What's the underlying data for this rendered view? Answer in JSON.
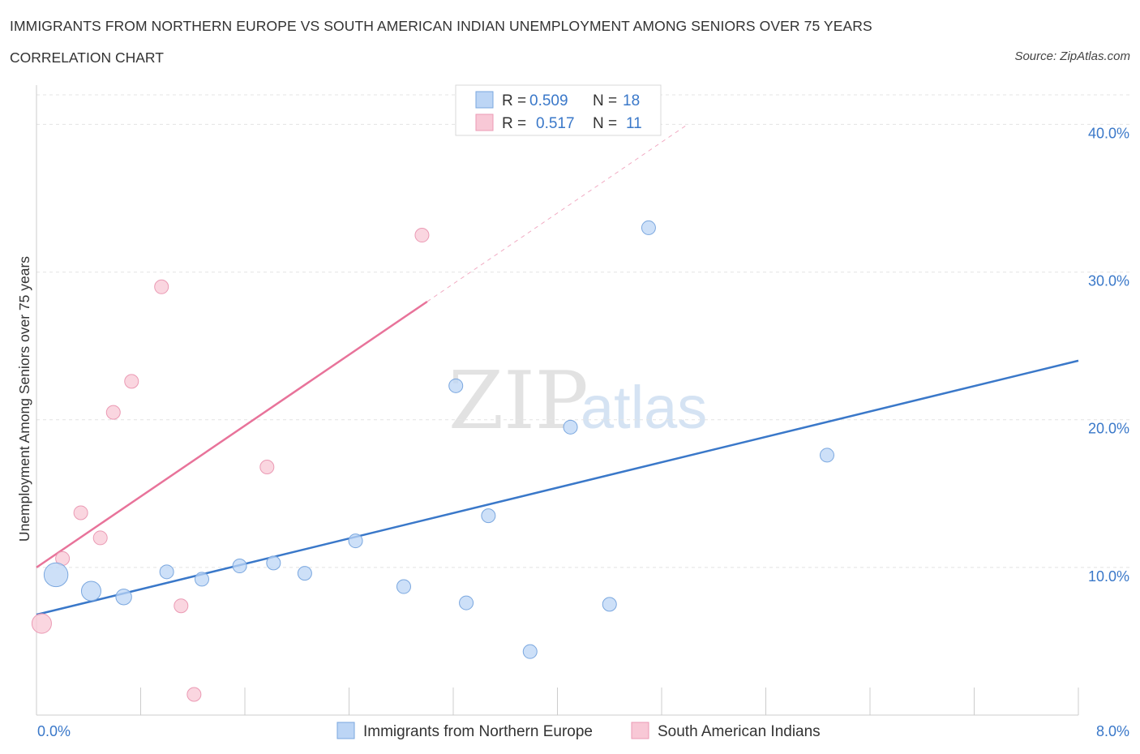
{
  "header": {
    "title": "IMMIGRANTS FROM NORTHERN EUROPE VS SOUTH AMERICAN INDIAN UNEMPLOYMENT AMONG SENIORS OVER 75 YEARS",
    "subtitle": "CORRELATION CHART",
    "source": "Source: ZipAtlas.com"
  },
  "watermark": {
    "part1": "ZIP",
    "part2": "atlas"
  },
  "legend": {
    "series1": {
      "r_label": "R =",
      "r_value": "0.509",
      "n_label": "N =",
      "n_value": "18"
    },
    "series2": {
      "r_label": "R =",
      "r_value": "0.517",
      "n_label": "N =",
      "n_value": "11"
    }
  },
  "chart_data": {
    "type": "scatter",
    "title": "Immigrants from Northern Europe vs South American Indian Unemployment Among Seniors over 75 years",
    "xlabel": "",
    "ylabel": "Unemployment Among Seniors over 75 years",
    "xlim": [
      0,
      8
    ],
    "ylim": [
      0,
      42
    ],
    "x_tick_labels": [
      "0.0%",
      "8.0%"
    ],
    "y_ticks": [
      10,
      20,
      30,
      40
    ],
    "y_tick_labels": [
      "10.0%",
      "20.0%",
      "30.0%",
      "40.0%"
    ],
    "grid": true,
    "colors": {
      "series1": "#3a78c9",
      "series2": "#e8739a",
      "series1_fill": "#bcd5f5",
      "series2_fill": "#f8c8d6"
    },
    "series": [
      {
        "name": "Immigrants from Northern Europe",
        "points": [
          {
            "x": 0.15,
            "y": 9.5,
            "size": 3
          },
          {
            "x": 0.42,
            "y": 8.4,
            "size": 2
          },
          {
            "x": 0.67,
            "y": 8.0,
            "size": 1.3
          },
          {
            "x": 1.0,
            "y": 9.7,
            "size": 1
          },
          {
            "x": 1.27,
            "y": 9.2,
            "size": 1
          },
          {
            "x": 1.56,
            "y": 10.1,
            "size": 1
          },
          {
            "x": 1.82,
            "y": 10.3,
            "size": 1
          },
          {
            "x": 2.06,
            "y": 9.6,
            "size": 1
          },
          {
            "x": 2.45,
            "y": 11.8,
            "size": 1
          },
          {
            "x": 2.82,
            "y": 8.7,
            "size": 1
          },
          {
            "x": 3.3,
            "y": 7.6,
            "size": 1
          },
          {
            "x": 3.22,
            "y": 22.3,
            "size": 1
          },
          {
            "x": 3.47,
            "y": 13.5,
            "size": 1
          },
          {
            "x": 3.79,
            "y": 4.3,
            "size": 1
          },
          {
            "x": 4.1,
            "y": 19.5,
            "size": 1
          },
          {
            "x": 4.4,
            "y": 7.5,
            "size": 1
          },
          {
            "x": 4.7,
            "y": 33.0,
            "size": 1
          },
          {
            "x": 6.07,
            "y": 17.6,
            "size": 1
          }
        ],
        "trend": {
          "x1": 0.0,
          "y1": 6.8,
          "x2": 8.0,
          "y2": 24.0
        }
      },
      {
        "name": "South American Indians",
        "points": [
          {
            "x": 0.04,
            "y": 6.2,
            "size": 2
          },
          {
            "x": 0.2,
            "y": 10.6,
            "size": 1
          },
          {
            "x": 0.34,
            "y": 13.7,
            "size": 1
          },
          {
            "x": 0.49,
            "y": 12.0,
            "size": 1
          },
          {
            "x": 0.59,
            "y": 20.5,
            "size": 1
          },
          {
            "x": 0.73,
            "y": 22.6,
            "size": 1
          },
          {
            "x": 0.96,
            "y": 29.0,
            "size": 1
          },
          {
            "x": 1.11,
            "y": 7.4,
            "size": 1
          },
          {
            "x": 1.21,
            "y": 1.4,
            "size": 1
          },
          {
            "x": 1.77,
            "y": 16.8,
            "size": 1
          },
          {
            "x": 2.96,
            "y": 32.5,
            "size": 1
          }
        ],
        "trend": {
          "x1": 0.0,
          "y1": 10.0,
          "x2": 3.0,
          "y2": 28.0
        },
        "trend_dashed": {
          "x1": 3.0,
          "y1": 28.0,
          "x2": 5.0,
          "y2": 40.0
        }
      }
    ]
  },
  "bottom_legend": {
    "series1": "Immigrants from Northern Europe",
    "series2": "South American Indians"
  }
}
